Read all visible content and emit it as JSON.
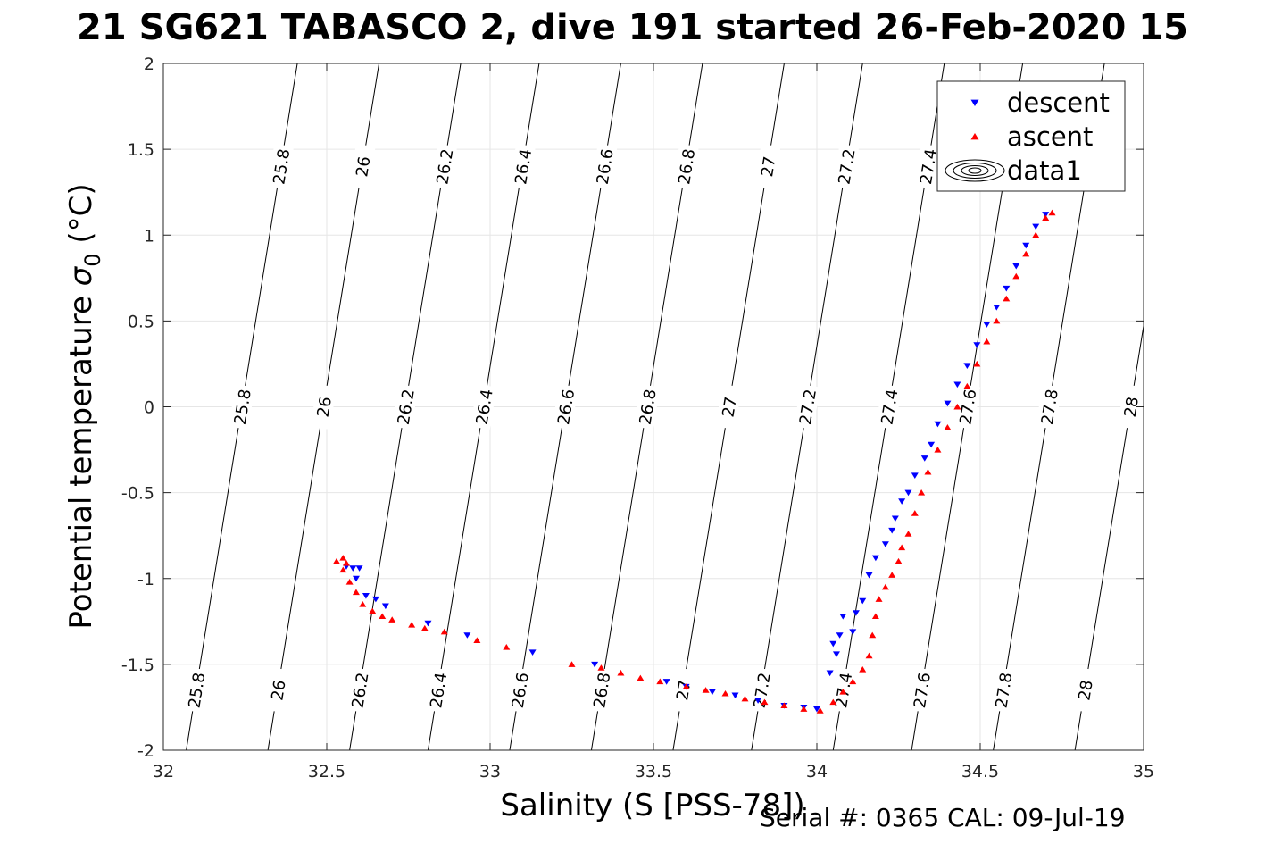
{
  "chart_data": {
    "type": "scatter",
    "title": "21 SG621 TABASCO 2, dive 191 started 26-Feb-2020 15",
    "xlabel": "Salinity (S [PSS-78])",
    "ylabel_text": "Potential temperature ",
    "ylabel_subscript": "0",
    "ylabel_unit": " (°C)",
    "xlim": [
      32,
      35
    ],
    "ylim": [
      -2,
      2
    ],
    "xticks": [
      32,
      32.5,
      33,
      33.5,
      34,
      34.5,
      35
    ],
    "yticks": [
      -2,
      -1.5,
      -1,
      -0.5,
      0,
      0.5,
      1,
      1.5,
      2
    ],
    "xtick_labels": [
      "32",
      "32.5",
      "33",
      "33.5",
      "34",
      "34.5",
      "35"
    ],
    "ytick_labels": [
      "-2",
      "-1.5",
      "-1",
      "-0.5",
      "0",
      "0.5",
      "1",
      "1.5",
      "2"
    ],
    "grid": true,
    "legend_placement": "top-right",
    "legend": [
      {
        "label": "descent",
        "marker": "triangle-down",
        "color": "#0000ff"
      },
      {
        "label": "ascent",
        "marker": "triangle-up",
        "color": "#ff0000"
      },
      {
        "label": "data1",
        "marker": "contour",
        "color": "#000000"
      }
    ],
    "contours": {
      "levels": [
        25.8,
        26,
        26.2,
        26.4,
        26.6,
        26.8,
        27,
        27.2,
        27.4,
        27.6,
        27.8,
        28
      ],
      "labels": [
        "25.8",
        "26",
        "26.2",
        "26.4",
        "26.6",
        "26.8",
        "27",
        "27.2",
        "27.4",
        "27.6",
        "27.8",
        "28"
      ],
      "base_salinity_at_minus2": [
        32.07,
        32.32,
        32.57,
        32.81,
        33.06,
        33.31,
        33.56,
        33.8,
        34.05,
        34.29,
        34.54,
        34.79
      ],
      "salinity_per_degree": 0.085,
      "label_temperatures": [
        1.4,
        0.0,
        -1.65
      ]
    },
    "series": [
      {
        "name": "descent",
        "marker": "triangle-down",
        "color": "#0000ff",
        "points": [
          [
            32.56,
            -0.93
          ],
          [
            32.58,
            -0.94
          ],
          [
            32.6,
            -0.94
          ],
          [
            32.59,
            -1.0
          ],
          [
            32.62,
            -1.1
          ],
          [
            32.65,
            -1.12
          ],
          [
            32.68,
            -1.16
          ],
          [
            32.81,
            -1.26
          ],
          [
            32.93,
            -1.33
          ],
          [
            33.13,
            -1.43
          ],
          [
            33.32,
            -1.5
          ],
          [
            33.54,
            -1.6
          ],
          [
            33.6,
            -1.63
          ],
          [
            33.68,
            -1.66
          ],
          [
            33.75,
            -1.68
          ],
          [
            33.82,
            -1.71
          ],
          [
            33.9,
            -1.74
          ],
          [
            33.96,
            -1.75
          ],
          [
            34.0,
            -1.76
          ],
          [
            34.04,
            -1.55
          ],
          [
            34.06,
            -1.44
          ],
          [
            34.05,
            -1.38
          ],
          [
            34.07,
            -1.33
          ],
          [
            34.11,
            -1.31
          ],
          [
            34.08,
            -1.22
          ],
          [
            34.12,
            -1.2
          ],
          [
            34.14,
            -1.13
          ],
          [
            34.16,
            -0.98
          ],
          [
            34.18,
            -0.88
          ],
          [
            34.21,
            -0.8
          ],
          [
            34.23,
            -0.72
          ],
          [
            34.24,
            -0.65
          ],
          [
            34.26,
            -0.55
          ],
          [
            34.28,
            -0.5
          ],
          [
            34.3,
            -0.4
          ],
          [
            34.33,
            -0.3
          ],
          [
            34.35,
            -0.22
          ],
          [
            34.37,
            -0.1
          ],
          [
            34.4,
            0.02
          ],
          [
            34.43,
            0.13
          ],
          [
            34.46,
            0.24
          ],
          [
            34.49,
            0.36
          ],
          [
            34.52,
            0.48
          ],
          [
            34.55,
            0.58
          ],
          [
            34.58,
            0.69
          ],
          [
            34.61,
            0.82
          ],
          [
            34.64,
            0.94
          ],
          [
            34.67,
            1.05
          ],
          [
            34.7,
            1.12
          ]
        ]
      },
      {
        "name": "ascent",
        "marker": "triangle-up",
        "color": "#ff0000",
        "points": [
          [
            32.53,
            -0.9
          ],
          [
            32.55,
            -0.88
          ],
          [
            32.56,
            -0.91
          ],
          [
            32.55,
            -0.95
          ],
          [
            32.57,
            -1.02
          ],
          [
            32.59,
            -1.08
          ],
          [
            32.61,
            -1.15
          ],
          [
            32.64,
            -1.19
          ],
          [
            32.67,
            -1.22
          ],
          [
            32.7,
            -1.24
          ],
          [
            32.76,
            -1.27
          ],
          [
            32.8,
            -1.29
          ],
          [
            32.86,
            -1.31
          ],
          [
            32.96,
            -1.36
          ],
          [
            33.05,
            -1.4
          ],
          [
            33.25,
            -1.5
          ],
          [
            33.34,
            -1.52
          ],
          [
            33.4,
            -1.55
          ],
          [
            33.46,
            -1.58
          ],
          [
            33.52,
            -1.6
          ],
          [
            33.6,
            -1.63
          ],
          [
            33.66,
            -1.65
          ],
          [
            33.72,
            -1.67
          ],
          [
            33.78,
            -1.7
          ],
          [
            33.84,
            -1.72
          ],
          [
            33.9,
            -1.74
          ],
          [
            33.96,
            -1.76
          ],
          [
            34.01,
            -1.77
          ],
          [
            34.05,
            -1.72
          ],
          [
            34.08,
            -1.66
          ],
          [
            34.11,
            -1.6
          ],
          [
            34.14,
            -1.53
          ],
          [
            34.16,
            -1.45
          ],
          [
            34.17,
            -1.33
          ],
          [
            34.18,
            -1.22
          ],
          [
            34.19,
            -1.12
          ],
          [
            34.21,
            -1.05
          ],
          [
            34.23,
            -0.98
          ],
          [
            34.25,
            -0.9
          ],
          [
            34.26,
            -0.82
          ],
          [
            34.28,
            -0.74
          ],
          [
            34.3,
            -0.62
          ],
          [
            34.32,
            -0.5
          ],
          [
            34.34,
            -0.38
          ],
          [
            34.37,
            -0.25
          ],
          [
            34.4,
            -0.12
          ],
          [
            34.43,
            0.0
          ],
          [
            34.46,
            0.12
          ],
          [
            34.49,
            0.25
          ],
          [
            34.52,
            0.38
          ],
          [
            34.55,
            0.5
          ],
          [
            34.58,
            0.63
          ],
          [
            34.61,
            0.76
          ],
          [
            34.64,
            0.89
          ],
          [
            34.67,
            1.0
          ],
          [
            34.7,
            1.1
          ],
          [
            34.72,
            1.13
          ]
        ]
      }
    ]
  },
  "footer": {
    "serial_cal": "Serial #: 0365  CAL: 09-Jul-19"
  }
}
